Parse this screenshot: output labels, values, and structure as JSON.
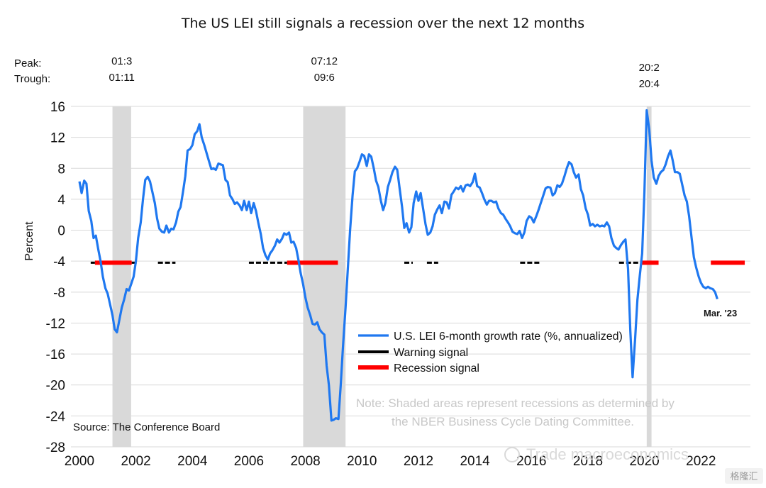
{
  "chart_data": {
    "type": "line",
    "title": "The US LEI still signals a recession over the next 12 months",
    "ylabel": "Percent",
    "xlim": [
      1999.7,
      2023.75
    ],
    "ylim": [
      -28,
      16
    ],
    "yticks": [
      16,
      12,
      8,
      4,
      0,
      -4,
      -8,
      -12,
      -16,
      -20,
      -24,
      -28
    ],
    "xticks": [
      2000,
      2002,
      2004,
      2006,
      2008,
      2010,
      2012,
      2014,
      2016,
      2018,
      2020,
      2022
    ],
    "grid": "horizontal",
    "legend_position": "bottom-right",
    "colors": {
      "line": "#1f78f0",
      "warning": "#000000",
      "recession": "#ff0000",
      "shade": "#d9d9d9",
      "grid": "#d9d9d9"
    },
    "peak_label": "Peak:",
    "trough_label": "Trough:",
    "recessions": [
      {
        "peak": "01:3",
        "trough": "01:11",
        "start": 2001.17,
        "end": 2001.83
      },
      {
        "peak": "07:12",
        "trough": "09:6",
        "start": 2007.92,
        "end": 2009.42
      },
      {
        "peak": "20:2",
        "trough": "20:4",
        "start": 2020.08,
        "end": 2020.25
      }
    ],
    "series": [
      {
        "name": "U.S. LEI 6-month growth rate (%, annualized)",
        "kind": "line",
        "points": [
          [
            2000.0,
            6.3
          ],
          [
            2000.08,
            4.8
          ],
          [
            2000.17,
            6.4
          ],
          [
            2000.25,
            6.0
          ],
          [
            2000.33,
            2.5
          ],
          [
            2000.42,
            1.2
          ],
          [
            2000.5,
            -1.0
          ],
          [
            2000.58,
            -0.7
          ],
          [
            2000.67,
            -2.5
          ],
          [
            2000.75,
            -4.0
          ],
          [
            2000.83,
            -6.0
          ],
          [
            2000.92,
            -7.5
          ],
          [
            2001.0,
            -8.2
          ],
          [
            2001.08,
            -9.5
          ],
          [
            2001.17,
            -11.0
          ],
          [
            2001.25,
            -12.8
          ],
          [
            2001.33,
            -13.2
          ],
          [
            2001.42,
            -11.5
          ],
          [
            2001.5,
            -10.0
          ],
          [
            2001.58,
            -9.0
          ],
          [
            2001.67,
            -7.6
          ],
          [
            2001.75,
            -7.8
          ],
          [
            2001.83,
            -7.0
          ],
          [
            2001.92,
            -6.0
          ],
          [
            2002.0,
            -4.0
          ],
          [
            2002.08,
            -1.0
          ],
          [
            2002.17,
            1.0
          ],
          [
            2002.25,
            4.0
          ],
          [
            2002.33,
            6.5
          ],
          [
            2002.42,
            6.9
          ],
          [
            2002.5,
            6.3
          ],
          [
            2002.58,
            5.0
          ],
          [
            2002.67,
            3.5
          ],
          [
            2002.75,
            1.5
          ],
          [
            2002.83,
            0.2
          ],
          [
            2002.92,
            -0.2
          ],
          [
            2003.0,
            -0.3
          ],
          [
            2003.08,
            0.6
          ],
          [
            2003.17,
            -0.3
          ],
          [
            2003.25,
            0.2
          ],
          [
            2003.33,
            0.1
          ],
          [
            2003.42,
            1.0
          ],
          [
            2003.5,
            2.4
          ],
          [
            2003.58,
            3.0
          ],
          [
            2003.67,
            5.0
          ],
          [
            2003.75,
            7.0
          ],
          [
            2003.83,
            10.3
          ],
          [
            2003.92,
            10.5
          ],
          [
            2004.0,
            11.0
          ],
          [
            2004.08,
            12.4
          ],
          [
            2004.17,
            12.8
          ],
          [
            2004.25,
            13.7
          ],
          [
            2004.33,
            12.0
          ],
          [
            2004.42,
            11.0
          ],
          [
            2004.5,
            10.0
          ],
          [
            2004.58,
            9.0
          ],
          [
            2004.67,
            7.9
          ],
          [
            2004.75,
            8.0
          ],
          [
            2004.83,
            7.8
          ],
          [
            2004.92,
            8.6
          ],
          [
            2005.0,
            8.5
          ],
          [
            2005.08,
            8.4
          ],
          [
            2005.17,
            6.5
          ],
          [
            2005.25,
            6.2
          ],
          [
            2005.33,
            4.5
          ],
          [
            2005.42,
            4.0
          ],
          [
            2005.5,
            3.4
          ],
          [
            2005.58,
            3.6
          ],
          [
            2005.67,
            3.2
          ],
          [
            2005.75,
            2.6
          ],
          [
            2005.83,
            3.8
          ],
          [
            2005.92,
            2.6
          ],
          [
            2006.0,
            3.7
          ],
          [
            2006.08,
            2.2
          ],
          [
            2006.17,
            3.5
          ],
          [
            2006.25,
            2.5
          ],
          [
            2006.33,
            1.0
          ],
          [
            2006.42,
            -0.5
          ],
          [
            2006.5,
            -2.3
          ],
          [
            2006.58,
            -3.2
          ],
          [
            2006.67,
            -3.8
          ],
          [
            2006.75,
            -3.0
          ],
          [
            2006.83,
            -2.6
          ],
          [
            2006.92,
            -2.0
          ],
          [
            2007.0,
            -1.2
          ],
          [
            2007.08,
            -1.6
          ],
          [
            2007.17,
            -1.1
          ],
          [
            2007.25,
            -0.4
          ],
          [
            2007.33,
            -0.6
          ],
          [
            2007.42,
            -0.3
          ],
          [
            2007.5,
            -1.6
          ],
          [
            2007.58,
            -1.5
          ],
          [
            2007.67,
            -2.3
          ],
          [
            2007.75,
            -3.8
          ],
          [
            2007.83,
            -5.5
          ],
          [
            2007.92,
            -7.0
          ],
          [
            2008.0,
            -8.7
          ],
          [
            2008.08,
            -10.0
          ],
          [
            2008.17,
            -11.0
          ],
          [
            2008.25,
            -12.1
          ],
          [
            2008.33,
            -12.2
          ],
          [
            2008.42,
            -11.9
          ],
          [
            2008.5,
            -12.8
          ],
          [
            2008.58,
            -13.2
          ],
          [
            2008.67,
            -13.5
          ],
          [
            2008.75,
            -17.5
          ],
          [
            2008.83,
            -20.0
          ],
          [
            2008.92,
            -24.6
          ],
          [
            2009.0,
            -24.5
          ],
          [
            2009.08,
            -24.3
          ],
          [
            2009.17,
            -24.4
          ],
          [
            2009.25,
            -20.0
          ],
          [
            2009.33,
            -15.0
          ],
          [
            2009.42,
            -10.0
          ],
          [
            2009.5,
            -5.0
          ],
          [
            2009.58,
            0.0
          ],
          [
            2009.67,
            4.5
          ],
          [
            2009.75,
            7.6
          ],
          [
            2009.83,
            8.0
          ],
          [
            2009.92,
            8.9
          ],
          [
            2010.0,
            9.8
          ],
          [
            2010.08,
            9.6
          ],
          [
            2010.17,
            8.3
          ],
          [
            2010.25,
            9.8
          ],
          [
            2010.33,
            9.5
          ],
          [
            2010.42,
            8.0
          ],
          [
            2010.5,
            6.4
          ],
          [
            2010.58,
            5.6
          ],
          [
            2010.67,
            3.8
          ],
          [
            2010.75,
            2.6
          ],
          [
            2010.83,
            3.5
          ],
          [
            2010.92,
            5.6
          ],
          [
            2011.0,
            6.5
          ],
          [
            2011.08,
            7.5
          ],
          [
            2011.17,
            8.2
          ],
          [
            2011.25,
            7.8
          ],
          [
            2011.33,
            5.5
          ],
          [
            2011.42,
            3.0
          ],
          [
            2011.5,
            0.3
          ],
          [
            2011.58,
            0.9
          ],
          [
            2011.67,
            -0.3
          ],
          [
            2011.75,
            0.4
          ],
          [
            2011.83,
            3.5
          ],
          [
            2011.92,
            5.0
          ],
          [
            2012.0,
            3.8
          ],
          [
            2012.08,
            4.8
          ],
          [
            2012.17,
            2.7
          ],
          [
            2012.25,
            0.8
          ],
          [
            2012.33,
            -0.6
          ],
          [
            2012.42,
            -0.3
          ],
          [
            2012.5,
            0.5
          ],
          [
            2012.58,
            2.0
          ],
          [
            2012.67,
            2.7
          ],
          [
            2012.75,
            3.2
          ],
          [
            2012.83,
            2.2
          ],
          [
            2012.92,
            3.7
          ],
          [
            2013.0,
            3.6
          ],
          [
            2013.08,
            2.8
          ],
          [
            2013.17,
            4.6
          ],
          [
            2013.25,
            5.0
          ],
          [
            2013.33,
            5.5
          ],
          [
            2013.42,
            5.3
          ],
          [
            2013.5,
            5.7
          ],
          [
            2013.58,
            5.0
          ],
          [
            2013.67,
            5.8
          ],
          [
            2013.75,
            5.9
          ],
          [
            2013.83,
            5.7
          ],
          [
            2013.92,
            6.2
          ],
          [
            2014.0,
            7.3
          ],
          [
            2014.08,
            5.7
          ],
          [
            2014.17,
            5.5
          ],
          [
            2014.25,
            4.8
          ],
          [
            2014.33,
            4.0
          ],
          [
            2014.42,
            3.3
          ],
          [
            2014.5,
            3.8
          ],
          [
            2014.58,
            3.8
          ],
          [
            2014.67,
            3.6
          ],
          [
            2014.75,
            3.7
          ],
          [
            2014.83,
            2.8
          ],
          [
            2014.92,
            2.2
          ],
          [
            2015.0,
            2.0
          ],
          [
            2015.08,
            1.5
          ],
          [
            2015.17,
            1.0
          ],
          [
            2015.25,
            0.5
          ],
          [
            2015.33,
            -0.2
          ],
          [
            2015.42,
            -0.4
          ],
          [
            2015.5,
            -0.5
          ],
          [
            2015.58,
            -0.1
          ],
          [
            2015.67,
            -1.0
          ],
          [
            2015.75,
            -0.3
          ],
          [
            2015.83,
            1.2
          ],
          [
            2015.92,
            1.8
          ],
          [
            2016.0,
            1.6
          ],
          [
            2016.08,
            1.0
          ],
          [
            2016.17,
            1.8
          ],
          [
            2016.25,
            2.6
          ],
          [
            2016.33,
            3.5
          ],
          [
            2016.42,
            4.5
          ],
          [
            2016.5,
            5.4
          ],
          [
            2016.58,
            5.6
          ],
          [
            2016.67,
            5.5
          ],
          [
            2016.75,
            4.5
          ],
          [
            2016.83,
            4.8
          ],
          [
            2016.92,
            5.8
          ],
          [
            2017.0,
            5.6
          ],
          [
            2017.08,
            6.0
          ],
          [
            2017.17,
            7.0
          ],
          [
            2017.25,
            8.0
          ],
          [
            2017.33,
            8.8
          ],
          [
            2017.42,
            8.5
          ],
          [
            2017.5,
            7.5
          ],
          [
            2017.58,
            6.8
          ],
          [
            2017.67,
            7.2
          ],
          [
            2017.75,
            5.3
          ],
          [
            2017.83,
            4.5
          ],
          [
            2017.92,
            2.8
          ],
          [
            2018.0,
            2.0
          ],
          [
            2018.08,
            0.6
          ],
          [
            2018.17,
            0.8
          ],
          [
            2018.25,
            0.5
          ],
          [
            2018.33,
            0.7
          ],
          [
            2018.42,
            0.5
          ],
          [
            2018.5,
            0.6
          ],
          [
            2018.58,
            0.5
          ],
          [
            2018.67,
            1.0
          ],
          [
            2018.75,
            0.5
          ],
          [
            2018.83,
            -1.0
          ],
          [
            2018.92,
            -2.0
          ],
          [
            2019.0,
            -2.3
          ],
          [
            2019.08,
            -2.5
          ],
          [
            2019.17,
            -1.9
          ],
          [
            2019.25,
            -1.5
          ],
          [
            2019.33,
            -1.2
          ],
          [
            2019.42,
            -5.0
          ],
          [
            2019.5,
            -13.0
          ],
          [
            2019.58,
            -19.0
          ],
          [
            2019.67,
            -14.0
          ],
          [
            2019.75,
            -9.0
          ],
          [
            2019.83,
            -6.0
          ],
          [
            2019.92,
            -3.0
          ],
          [
            2020.0,
            5.0
          ],
          [
            2020.08,
            15.5
          ],
          [
            2020.17,
            13.0
          ],
          [
            2020.25,
            9.0
          ],
          [
            2020.33,
            6.8
          ],
          [
            2020.42,
            6.0
          ],
          [
            2020.5,
            7.0
          ],
          [
            2020.58,
            7.5
          ],
          [
            2020.67,
            7.8
          ],
          [
            2020.75,
            8.5
          ],
          [
            2020.83,
            9.5
          ],
          [
            2020.92,
            10.3
          ],
          [
            2021.0,
            9.0
          ],
          [
            2021.08,
            7.5
          ],
          [
            2021.17,
            7.5
          ],
          [
            2021.25,
            7.3
          ],
          [
            2021.33,
            6.0
          ],
          [
            2021.42,
            4.5
          ],
          [
            2021.5,
            3.7
          ],
          [
            2021.58,
            1.8
          ],
          [
            2021.67,
            -1.0
          ],
          [
            2021.75,
            -3.5
          ],
          [
            2021.83,
            -4.8
          ],
          [
            2021.92,
            -6.0
          ],
          [
            2022.0,
            -6.8
          ],
          [
            2022.08,
            -7.3
          ],
          [
            2022.17,
            -7.5
          ],
          [
            2022.25,
            -7.3
          ],
          [
            2022.33,
            -7.5
          ],
          [
            2022.42,
            -7.6
          ],
          [
            2022.5,
            -8.0
          ],
          [
            2022.58,
            -8.9
          ]
        ]
      },
      {
        "name": "Warning signal",
        "kind": "signal",
        "y": -4.2,
        "segments": [
          [
            2000.4,
            2000.55
          ],
          [
            2001.85,
            2002.05
          ],
          [
            2002.78,
            2003.4
          ],
          [
            2006.0,
            2007.35
          ],
          [
            2011.5,
            2011.8
          ],
          [
            2012.3,
            2012.7
          ],
          [
            2015.6,
            2016.3
          ],
          [
            2019.1,
            2019.85
          ]
        ]
      },
      {
        "name": "Recession signal",
        "kind": "signal",
        "y": -4.2,
        "segments": [
          [
            2000.55,
            2001.85
          ],
          [
            2007.35,
            2009.15
          ],
          [
            2019.85,
            2020.5
          ],
          [
            2022.35,
            2023.55
          ]
        ]
      }
    ],
    "annotations": {
      "end_label": "Mar. '23",
      "note_line1": "Note: Shaded areas represent recessions as determined by",
      "note_line2": "the NBER Business Cycle Dating Committee.",
      "source": "Source: The Conference Board"
    }
  },
  "watermark": "Trade macroeconomics",
  "watermark_badge": "格隆汇"
}
